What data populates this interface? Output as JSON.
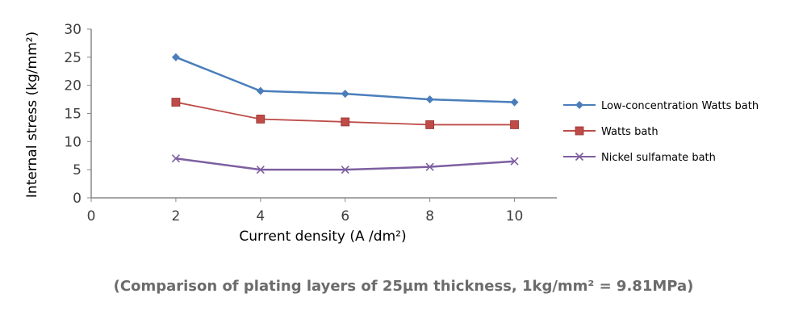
{
  "chart_data": {
    "type": "line",
    "xlabel": "Current density (A /dm²)",
    "ylabel": "Internal stress (kg/mm²)",
    "xlim": [
      0,
      11
    ],
    "ylim": [
      0,
      30
    ],
    "xticks": [
      0,
      2,
      4,
      6,
      8,
      10
    ],
    "yticks": [
      0,
      5,
      10,
      15,
      20,
      25,
      30
    ],
    "grid": false,
    "legend": "right",
    "x": [
      2,
      4,
      6,
      8,
      10
    ],
    "series": [
      {
        "name": "Low-concentration Watts bath",
        "values": [
          25,
          19,
          18.5,
          17.5,
          17
        ],
        "color": "#4a7ebb",
        "marker": "diamond"
      },
      {
        "name": "Watts bath",
        "values": [
          17,
          14,
          13.5,
          13,
          13
        ],
        "color": "#be4b48",
        "marker": "square"
      },
      {
        "name": "Nickel sulfamate bath",
        "values": [
          7,
          5,
          5,
          5.5,
          6.5
        ],
        "color": "#7d5fa0",
        "marker": "x"
      }
    ]
  },
  "note": "(Comparison of plating layers of 25µm thickness, 1kg/mm² = 9.81MPa)"
}
